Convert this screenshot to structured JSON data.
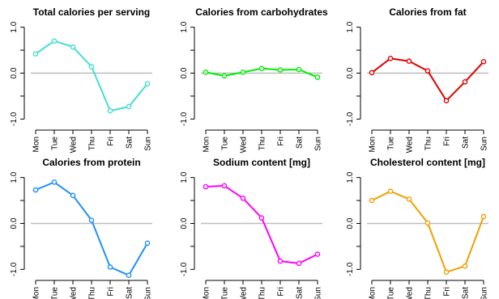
{
  "chart_data": [
    {
      "type": "line",
      "title": "Total calories per serving",
      "color": "#40E0D0",
      "categories": [
        "Mon",
        "Tue",
        "Wed",
        "Thu",
        "Fri",
        "Sat",
        "Sun"
      ],
      "values": [
        0.42,
        0.7,
        0.57,
        0.14,
        -0.82,
        -0.73,
        -0.23
      ],
      "ylim": [
        -1.1,
        1.1
      ],
      "yticks": [
        "-1.0",
        "-0.5",
        "0.0",
        "0.5",
        "1.0"
      ],
      "reference_line": 0
    },
    {
      "type": "line",
      "title": "Calories from carbohydrates",
      "color": "#00EE00",
      "categories": [
        "Mon",
        "Tue",
        "Wed",
        "Thu",
        "Fri",
        "Sat",
        "Sun"
      ],
      "values": [
        0.02,
        -0.06,
        0.02,
        0.1,
        0.07,
        0.08,
        -0.09
      ],
      "ylim": [
        -1.1,
        1.1
      ],
      "yticks": [
        "-1.0",
        "-0.5",
        "0.0",
        "0.5",
        "1.0"
      ],
      "reference_line": 0
    },
    {
      "type": "line",
      "title": "Calories from  fat",
      "color": "#E00000",
      "categories": [
        "Mon",
        "Tue",
        "Wed",
        "Thu",
        "Fri",
        "Sat",
        "Sun"
      ],
      "values": [
        0.01,
        0.32,
        0.26,
        0.05,
        -0.6,
        -0.19,
        0.25
      ],
      "ylim": [
        -1.1,
        1.1
      ],
      "yticks": [
        "-1.0",
        "-0.5",
        "0.0",
        "0.5",
        "1.0"
      ],
      "reference_line": 0
    },
    {
      "type": "line",
      "title": "Calories from  protein",
      "color": "#1E90FF",
      "categories": [
        "Mon",
        "Tue",
        "Wed",
        "Thu",
        "Fri",
        "Sat",
        "Sun"
      ],
      "values": [
        0.73,
        0.9,
        0.61,
        0.07,
        -0.95,
        -1.13,
        -0.43
      ],
      "ylim": [
        -1.1,
        1.1
      ],
      "yticks": [
        "-1.0",
        "-0.5",
        "0.0",
        "0.5",
        "1.0"
      ],
      "reference_line": 0
    },
    {
      "type": "line",
      "title": "Sodium content [mg]",
      "color": "#FF00FF",
      "categories": [
        "Mon",
        "Tue",
        "Wed",
        "Thu",
        "Fri",
        "Sat",
        "Sun"
      ],
      "values": [
        0.8,
        0.82,
        0.55,
        0.12,
        -0.82,
        -0.87,
        -0.67
      ],
      "ylim": [
        -1.1,
        1.1
      ],
      "yticks": [
        "-1.0",
        "-0.5",
        "0.0",
        "0.5",
        "1.0"
      ],
      "reference_line": 0
    },
    {
      "type": "line",
      "title": "Cholesterol content [mg]",
      "color": "#F0A000",
      "categories": [
        "Mon",
        "Tue",
        "Wed",
        "Thu",
        "Fri",
        "Sat",
        "Sun"
      ],
      "values": [
        0.5,
        0.7,
        0.53,
        0.01,
        -1.06,
        -0.93,
        0.15
      ],
      "ylim": [
        -1.1,
        1.1
      ],
      "yticks": [
        "-1.0",
        "-0.5",
        "0.0",
        "0.5",
        "1.0"
      ],
      "reference_line": 0
    }
  ]
}
